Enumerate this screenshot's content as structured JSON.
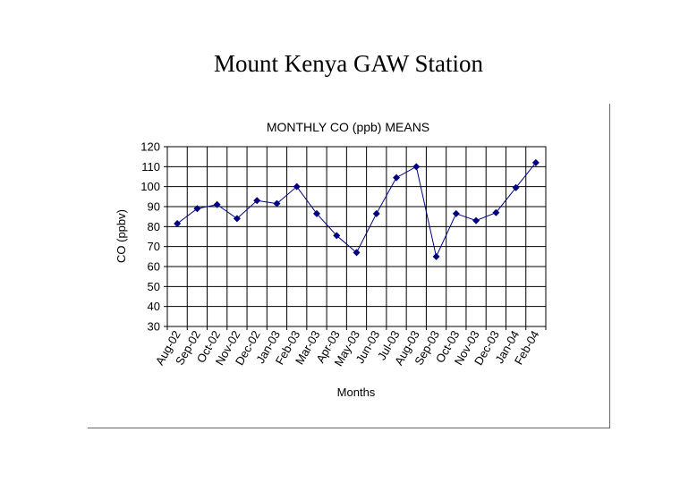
{
  "page": {
    "title": "Mount Kenya GAW Station"
  },
  "chart_data": {
    "type": "line",
    "title": "MONTHLY CO (ppb) MEANS",
    "xlabel": "Months",
    "ylabel": "CO (ppbv)",
    "ylim": [
      30,
      120
    ],
    "yticks": [
      30,
      40,
      50,
      60,
      70,
      80,
      90,
      100,
      110,
      120
    ],
    "grid": true,
    "categories": [
      "Aug-02",
      "Sep-02",
      "Oct-02",
      "Nov-02",
      "Dec-02",
      "Jan-03",
      "Feb-03",
      "Mar-03",
      "Apr-03",
      "May-03",
      "Jun-03",
      "Jul-03",
      "Aug-03",
      "Sep-03",
      "Oct-03",
      "Nov-03",
      "Dec-03",
      "Jan-04",
      "Feb-04"
    ],
    "series": [
      {
        "values": [
          81.5,
          89,
          91,
          84,
          93,
          91.5,
          100,
          86.5,
          75.5,
          67,
          86.5,
          104.5,
          110,
          65,
          86.5,
          83,
          87,
          99.5,
          112
        ]
      }
    ],
    "colors": {
      "line": "#000080",
      "marker": "#000080",
      "grid": "#000000"
    }
  }
}
